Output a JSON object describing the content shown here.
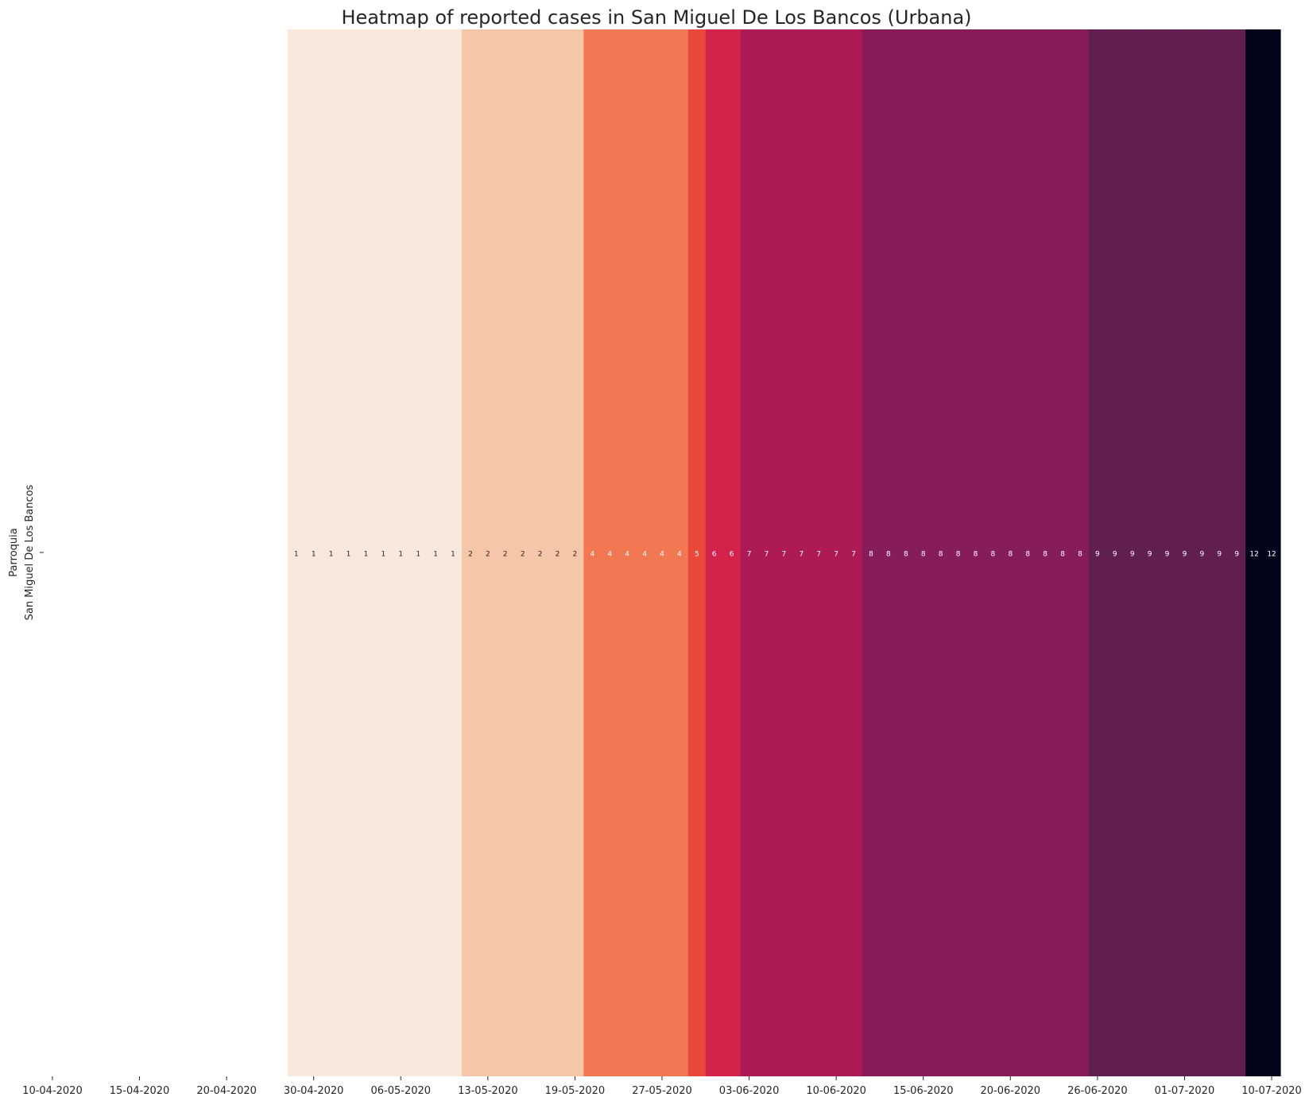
{
  "chart_data": {
    "type": "heatmap",
    "title": "Heatmap of reported cases in San Miguel De Los Bancos (Urbana)",
    "ylabel": "Parroquia",
    "rows": [
      "San Miguel De Los Bancos"
    ],
    "start_date": "2020-04-10",
    "x_tick_labels": [
      "10-04-2020",
      "15-04-2020",
      "20-04-2020",
      "30-04-2020",
      "06-05-2020",
      "13-05-2020",
      "19-05-2020",
      "27-05-2020",
      "03-06-2020",
      "10-06-2020",
      "15-06-2020",
      "20-06-2020",
      "26-06-2020",
      "01-07-2020",
      "10-07-2020"
    ],
    "x_tick_days": [
      0,
      5,
      10,
      15,
      20,
      25,
      30,
      35,
      40,
      45,
      50,
      55,
      60,
      65,
      70
    ],
    "values": [
      null,
      null,
      null,
      null,
      null,
      null,
      null,
      null,
      null,
      null,
      null,
      null,
      null,
      null,
      1,
      1,
      1,
      1,
      1,
      1,
      1,
      1,
      1,
      1,
      2,
      2,
      2,
      2,
      2,
      2,
      2,
      4,
      4,
      4,
      4,
      4,
      4,
      5,
      6,
      6,
      7,
      7,
      7,
      7,
      7,
      7,
      7,
      8,
      8,
      8,
      8,
      8,
      8,
      8,
      8,
      8,
      8,
      8,
      8,
      8,
      9,
      9,
      9,
      9,
      9,
      9,
      9,
      9,
      9,
      12,
      12
    ],
    "color_map": {
      "1": "#f9e9dc",
      "2": "#f6c6a8",
      "4": "#f27753",
      "5": "#e9483b",
      "6": "#d4234a",
      "7": "#ad1a55",
      "8": "#871c5a",
      "9": "#611f50",
      "12": "#03061a"
    },
    "annotation_colors": {
      "dark_text": "#262626",
      "light_text": "#ffffff"
    },
    "legend": "none",
    "grid": false
  }
}
